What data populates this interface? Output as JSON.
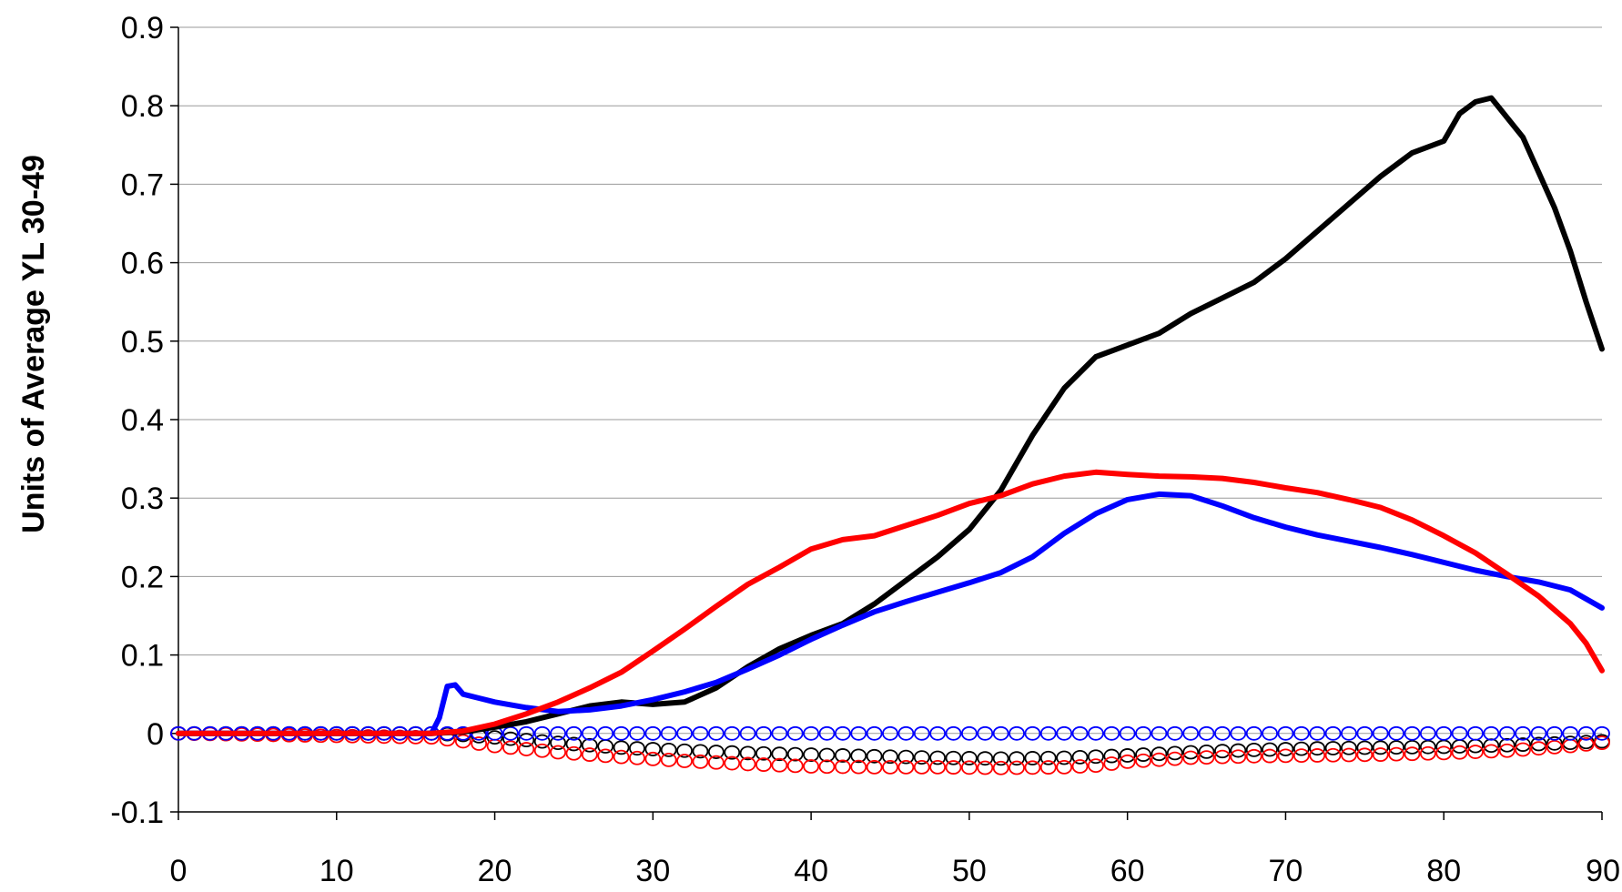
{
  "chart_data": {
    "type": "line",
    "title": "",
    "xlabel": "",
    "ylabel": "Units of Average YL 30-49",
    "xlim": [
      0,
      90
    ],
    "ylim": [
      -0.1,
      0.9
    ],
    "x_ticks": [
      "0",
      "10",
      "20",
      "30",
      "40",
      "50",
      "60",
      "70",
      "80",
      "90"
    ],
    "y_ticks": [
      "-0.1",
      "0",
      "0.1",
      "0.2",
      "0.3",
      "0.4",
      "0.5",
      "0.6",
      "0.7",
      "0.8",
      "0.9"
    ],
    "grid": "horizontal",
    "legend": "none",
    "series": [
      {
        "style": "line",
        "color": "#000000",
        "points": [
          [
            0,
            0
          ],
          [
            16,
            0
          ],
          [
            18,
            0.002
          ],
          [
            20,
            0.008
          ],
          [
            22,
            0.015
          ],
          [
            24,
            0.025
          ],
          [
            26,
            0.035
          ],
          [
            28,
            0.04
          ],
          [
            30,
            0.037
          ],
          [
            32,
            0.04
          ],
          [
            34,
            0.058
          ],
          [
            36,
            0.085
          ],
          [
            38,
            0.108
          ],
          [
            40,
            0.125
          ],
          [
            42,
            0.14
          ],
          [
            44,
            0.165
          ],
          [
            46,
            0.195
          ],
          [
            48,
            0.225
          ],
          [
            50,
            0.26
          ],
          [
            52,
            0.31
          ],
          [
            54,
            0.38
          ],
          [
            56,
            0.44
          ],
          [
            58,
            0.48
          ],
          [
            60,
            0.495
          ],
          [
            62,
            0.51
          ],
          [
            64,
            0.535
          ],
          [
            66,
            0.555
          ],
          [
            68,
            0.575
          ],
          [
            70,
            0.605
          ],
          [
            72,
            0.64
          ],
          [
            74,
            0.675
          ],
          [
            76,
            0.71
          ],
          [
            78,
            0.74
          ],
          [
            80,
            0.755
          ],
          [
            81,
            0.79
          ],
          [
            82,
            0.805
          ],
          [
            83,
            0.81
          ],
          [
            84,
            0.785
          ],
          [
            85,
            0.76
          ],
          [
            86,
            0.715
          ],
          [
            87,
            0.67
          ],
          [
            88,
            0.615
          ],
          [
            89,
            0.55
          ],
          [
            90,
            0.49
          ]
        ]
      },
      {
        "style": "line",
        "color": "#0000ff",
        "points": [
          [
            0,
            0
          ],
          [
            16,
            0
          ],
          [
            16.5,
            0.02
          ],
          [
            17,
            0.06
          ],
          [
            17.5,
            0.062
          ],
          [
            18,
            0.05
          ],
          [
            19,
            0.045
          ],
          [
            20,
            0.04
          ],
          [
            22,
            0.033
          ],
          [
            24,
            0.028
          ],
          [
            26,
            0.03
          ],
          [
            28,
            0.035
          ],
          [
            30,
            0.043
          ],
          [
            32,
            0.053
          ],
          [
            34,
            0.065
          ],
          [
            36,
            0.082
          ],
          [
            38,
            0.1
          ],
          [
            40,
            0.12
          ],
          [
            42,
            0.138
          ],
          [
            44,
            0.155
          ],
          [
            46,
            0.168
          ],
          [
            48,
            0.18
          ],
          [
            50,
            0.192
          ],
          [
            52,
            0.205
          ],
          [
            54,
            0.225
          ],
          [
            56,
            0.255
          ],
          [
            58,
            0.28
          ],
          [
            60,
            0.298
          ],
          [
            62,
            0.305
          ],
          [
            64,
            0.303
          ],
          [
            66,
            0.29
          ],
          [
            68,
            0.275
          ],
          [
            70,
            0.263
          ],
          [
            72,
            0.253
          ],
          [
            74,
            0.245
          ],
          [
            76,
            0.237
          ],
          [
            78,
            0.228
          ],
          [
            80,
            0.218
          ],
          [
            82,
            0.208
          ],
          [
            84,
            0.2
          ],
          [
            86,
            0.193
          ],
          [
            88,
            0.183
          ],
          [
            90,
            0.16
          ]
        ]
      },
      {
        "style": "line",
        "color": "#ff0000",
        "points": [
          [
            0,
            0
          ],
          [
            16,
            0
          ],
          [
            18,
            0.003
          ],
          [
            20,
            0.012
          ],
          [
            22,
            0.025
          ],
          [
            24,
            0.04
          ],
          [
            26,
            0.058
          ],
          [
            28,
            0.078
          ],
          [
            30,
            0.105
          ],
          [
            32,
            0.133
          ],
          [
            34,
            0.162
          ],
          [
            36,
            0.19
          ],
          [
            38,
            0.212
          ],
          [
            40,
            0.235
          ],
          [
            42,
            0.247
          ],
          [
            44,
            0.252
          ],
          [
            46,
            0.265
          ],
          [
            48,
            0.278
          ],
          [
            50,
            0.293
          ],
          [
            52,
            0.303
          ],
          [
            54,
            0.318
          ],
          [
            56,
            0.328
          ],
          [
            58,
            0.333
          ],
          [
            60,
            0.33
          ],
          [
            62,
            0.328
          ],
          [
            64,
            0.327
          ],
          [
            66,
            0.325
          ],
          [
            68,
            0.32
          ],
          [
            70,
            0.313
          ],
          [
            72,
            0.307
          ],
          [
            74,
            0.298
          ],
          [
            76,
            0.288
          ],
          [
            78,
            0.272
          ],
          [
            80,
            0.252
          ],
          [
            82,
            0.23
          ],
          [
            84,
            0.203
          ],
          [
            86,
            0.175
          ],
          [
            88,
            0.14
          ],
          [
            89,
            0.115
          ],
          [
            90,
            0.08
          ]
        ]
      },
      {
        "style": "markers",
        "color": "#000000",
        "points": [
          [
            0,
            0
          ],
          [
            16,
            0
          ],
          [
            18,
            -0.002
          ],
          [
            20,
            -0.005
          ],
          [
            24,
            -0.012
          ],
          [
            28,
            -0.018
          ],
          [
            32,
            -0.022
          ],
          [
            36,
            -0.025
          ],
          [
            40,
            -0.027
          ],
          [
            44,
            -0.029
          ],
          [
            48,
            -0.031
          ],
          [
            52,
            -0.032
          ],
          [
            56,
            -0.031
          ],
          [
            60,
            -0.028
          ],
          [
            64,
            -0.024
          ],
          [
            68,
            -0.021
          ],
          [
            72,
            -0.019
          ],
          [
            76,
            -0.018
          ],
          [
            80,
            -0.017
          ],
          [
            84,
            -0.015
          ],
          [
            88,
            -0.012
          ],
          [
            90,
            -0.01
          ]
        ]
      },
      {
        "style": "markers",
        "color": "#ff0000",
        "points": [
          [
            0,
            0
          ],
          [
            16,
            -0.005
          ],
          [
            18,
            -0.01
          ],
          [
            20,
            -0.016
          ],
          [
            24,
            -0.024
          ],
          [
            28,
            -0.03
          ],
          [
            32,
            -0.035
          ],
          [
            36,
            -0.039
          ],
          [
            40,
            -0.042
          ],
          [
            44,
            -0.043
          ],
          [
            48,
            -0.043
          ],
          [
            52,
            -0.044
          ],
          [
            56,
            -0.043
          ],
          [
            58,
            -0.041
          ],
          [
            60,
            -0.036
          ],
          [
            64,
            -0.031
          ],
          [
            68,
            -0.029
          ],
          [
            72,
            -0.028
          ],
          [
            76,
            -0.027
          ],
          [
            80,
            -0.025
          ],
          [
            84,
            -0.022
          ],
          [
            88,
            -0.016
          ],
          [
            90,
            -0.012
          ]
        ]
      },
      {
        "style": "markers",
        "color": "#0000ff",
        "points": [
          [
            0,
            0
          ],
          [
            90,
            0
          ]
        ]
      }
    ]
  }
}
